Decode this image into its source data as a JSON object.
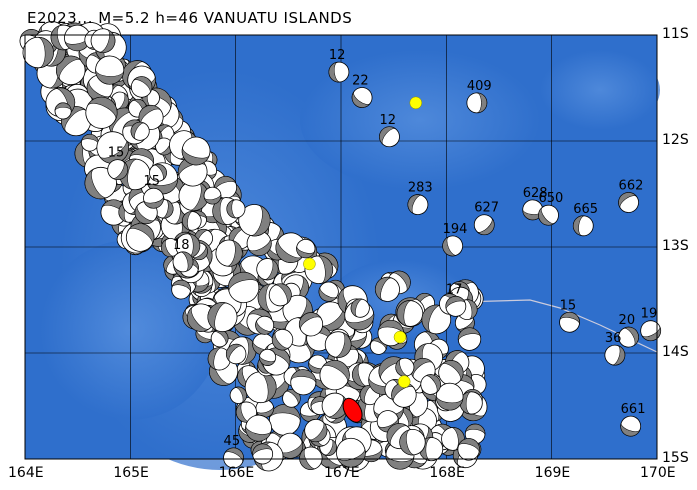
{
  "title": "E2023... M=5.2 h=46 VANUATU ISLANDS",
  "lon_ticks": [
    "164E",
    "165E",
    "166E",
    "167E",
    "168E",
    "169E",
    "170E"
  ],
  "lat_ticks": [
    "11S",
    "12S",
    "13S",
    "14S",
    "15S"
  ],
  "extent": {
    "lon": [
      164,
      170
    ],
    "lat_south": [
      11,
      15
    ]
  },
  "colors": {
    "ocean": "#2f6fcc",
    "shallow": "#5b93e0",
    "grid": "#000000",
    "mechanism_fill": "#808080",
    "main_event": "#ff0000",
    "marker": "#ffff00"
  },
  "main_event": {
    "lon": 167.11,
    "lat_s": 14.54
  },
  "markers": [
    {
      "lon": 167.71,
      "lat_s": 11.64
    },
    {
      "lon": 166.7,
      "lat_s": 13.16
    },
    {
      "lon": 167.56,
      "lat_s": 13.85
    },
    {
      "lon": 167.6,
      "lat_s": 14.27
    }
  ],
  "events": [
    {
      "lon": 168.29,
      "lat_s": 11.64,
      "label": "409"
    },
    {
      "lon": 168.36,
      "lat_s": 12.79,
      "label": "627"
    },
    {
      "lon": 168.82,
      "lat_s": 12.65,
      "label": "628"
    },
    {
      "lon": 168.97,
      "lat_s": 12.7,
      "label": "650"
    },
    {
      "lon": 169.3,
      "lat_s": 12.8,
      "label": "665"
    },
    {
      "lon": 169.73,
      "lat_s": 12.58,
      "label": "662"
    },
    {
      "lon": 169.17,
      "lat_s": 13.71,
      "label": "15"
    },
    {
      "lon": 169.73,
      "lat_s": 13.85,
      "label": "20"
    },
    {
      "lon": 169.6,
      "lat_s": 14.02,
      "label": "36"
    },
    {
      "lon": 169.94,
      "lat_s": 13.79,
      "label": "19"
    },
    {
      "lon": 169.75,
      "lat_s": 14.69,
      "label": "661"
    },
    {
      "lon": 168.06,
      "lat_s": 12.99,
      "label": "194"
    },
    {
      "lon": 167.73,
      "lat_s": 12.6,
      "label": "283"
    },
    {
      "lon": 168.09,
      "lat_s": 13.56,
      "label": "17"
    },
    {
      "lon": 165.98,
      "lat_s": 14.99,
      "label": "45"
    },
    {
      "lon": 165.5,
      "lat_s": 13.14,
      "label": "18"
    },
    {
      "lon": 164.88,
      "lat_s": 12.27,
      "label": "15"
    },
    {
      "lon": 165.22,
      "lat_s": 12.54,
      "label": "15"
    },
    {
      "lon": 167.2,
      "lat_s": 11.59,
      "label": "22"
    },
    {
      "lon": 166.98,
      "lat_s": 11.35,
      "label": "12"
    },
    {
      "lon": 167.46,
      "lat_s": 11.96,
      "label": "12"
    }
  ]
}
